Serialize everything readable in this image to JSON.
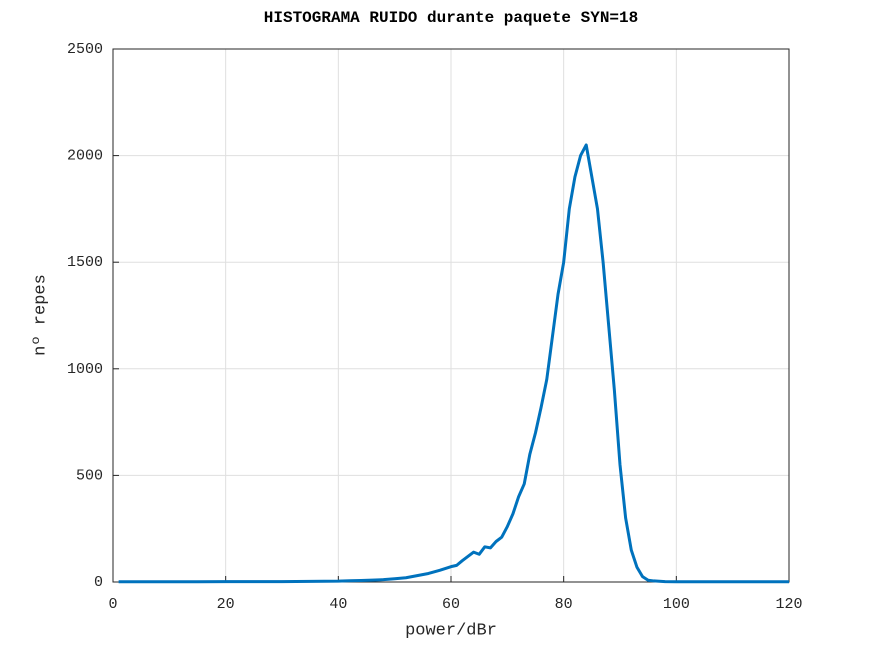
{
  "chart_data": {
    "type": "line",
    "title": "HISTOGRAMA RUIDO durante paquete SYN=18",
    "xlabel": "power/dBr",
    "ylabel": "nº repes",
    "xlim": [
      0,
      120
    ],
    "ylim": [
      0,
      2500
    ],
    "xticks": [
      0,
      20,
      40,
      60,
      80,
      100,
      120
    ],
    "yticks": [
      0,
      500,
      1000,
      1500,
      2000,
      2500
    ],
    "grid": true,
    "series": [
      {
        "color": "#0072bd",
        "x": [
          1,
          5,
          10,
          15,
          20,
          25,
          30,
          35,
          40,
          42,
          44,
          46,
          48,
          50,
          52,
          54,
          56,
          58,
          60,
          61,
          62,
          63,
          64,
          65,
          66,
          67,
          68,
          69,
          70,
          71,
          72,
          73,
          74,
          75,
          76,
          77,
          78,
          79,
          80,
          81,
          82,
          83,
          84,
          85,
          86,
          87,
          88,
          89,
          90,
          91,
          92,
          93,
          94,
          95,
          96,
          98,
          100,
          105,
          110,
          115,
          120
        ],
        "values": [
          1,
          1,
          1,
          1,
          2,
          2,
          2,
          3,
          4,
          6,
          7,
          9,
          11,
          15,
          20,
          30,
          40,
          55,
          72,
          78,
          100,
          120,
          140,
          130,
          165,
          160,
          190,
          210,
          260,
          320,
          400,
          460,
          600,
          700,
          820,
          950,
          1150,
          1350,
          1500,
          1750,
          1900,
          2000,
          2050,
          1900,
          1750,
          1500,
          1200,
          900,
          550,
          300,
          150,
          70,
          25,
          8,
          5,
          2,
          1,
          1,
          1,
          1,
          1
        ]
      }
    ]
  }
}
